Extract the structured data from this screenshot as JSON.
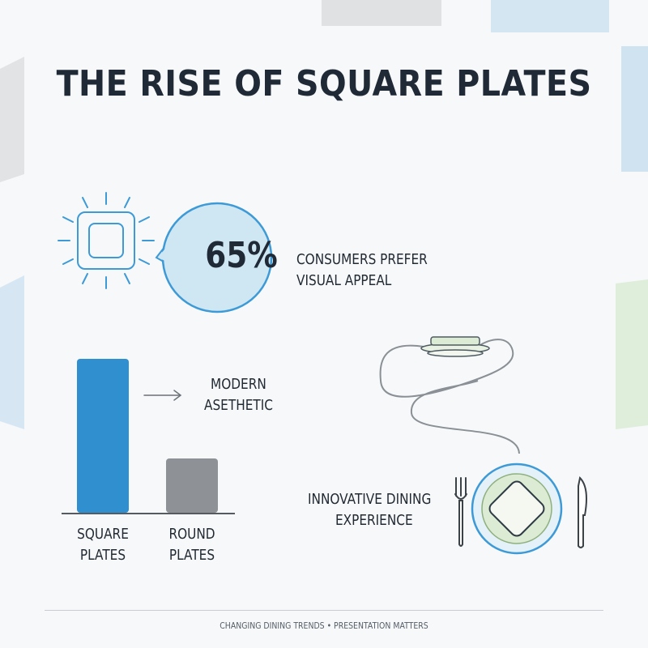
{
  "title": "THE RISE OF SQUARE PLATES",
  "stat": {
    "value": "65%",
    "caption_line1": "CONSUMERS PREFER",
    "caption_line2": "VISUAL APPEAL"
  },
  "bars_note": {
    "line1": "MODERN",
    "line2": "ASETHETIC"
  },
  "bars": [
    {
      "line1": "SQUARE",
      "line2": "PLATES",
      "color": "#2f8fcf",
      "level": 1.0
    },
    {
      "line1": "ROUND",
      "line2": "PLATES",
      "color": "#8e9297",
      "level": 0.35
    }
  ],
  "dining": {
    "line1": "INNOVATIVE DINING",
    "line2": "EXPERIENCE"
  },
  "footer": "CHANGING DINING TRENDS • PRESENTATION MATTERS",
  "icons": [
    "square-plate-sun-icon",
    "speech-bubble-icon",
    "arrow-right-icon",
    "plate-stack-icon",
    "fork-icon",
    "knife-icon",
    "square-plate-icon"
  ],
  "colors": {
    "accent_blue": "#2f8fcf",
    "light_blue": "#cfe6f3",
    "gray": "#8e9297",
    "green": "#dcebd3"
  }
}
